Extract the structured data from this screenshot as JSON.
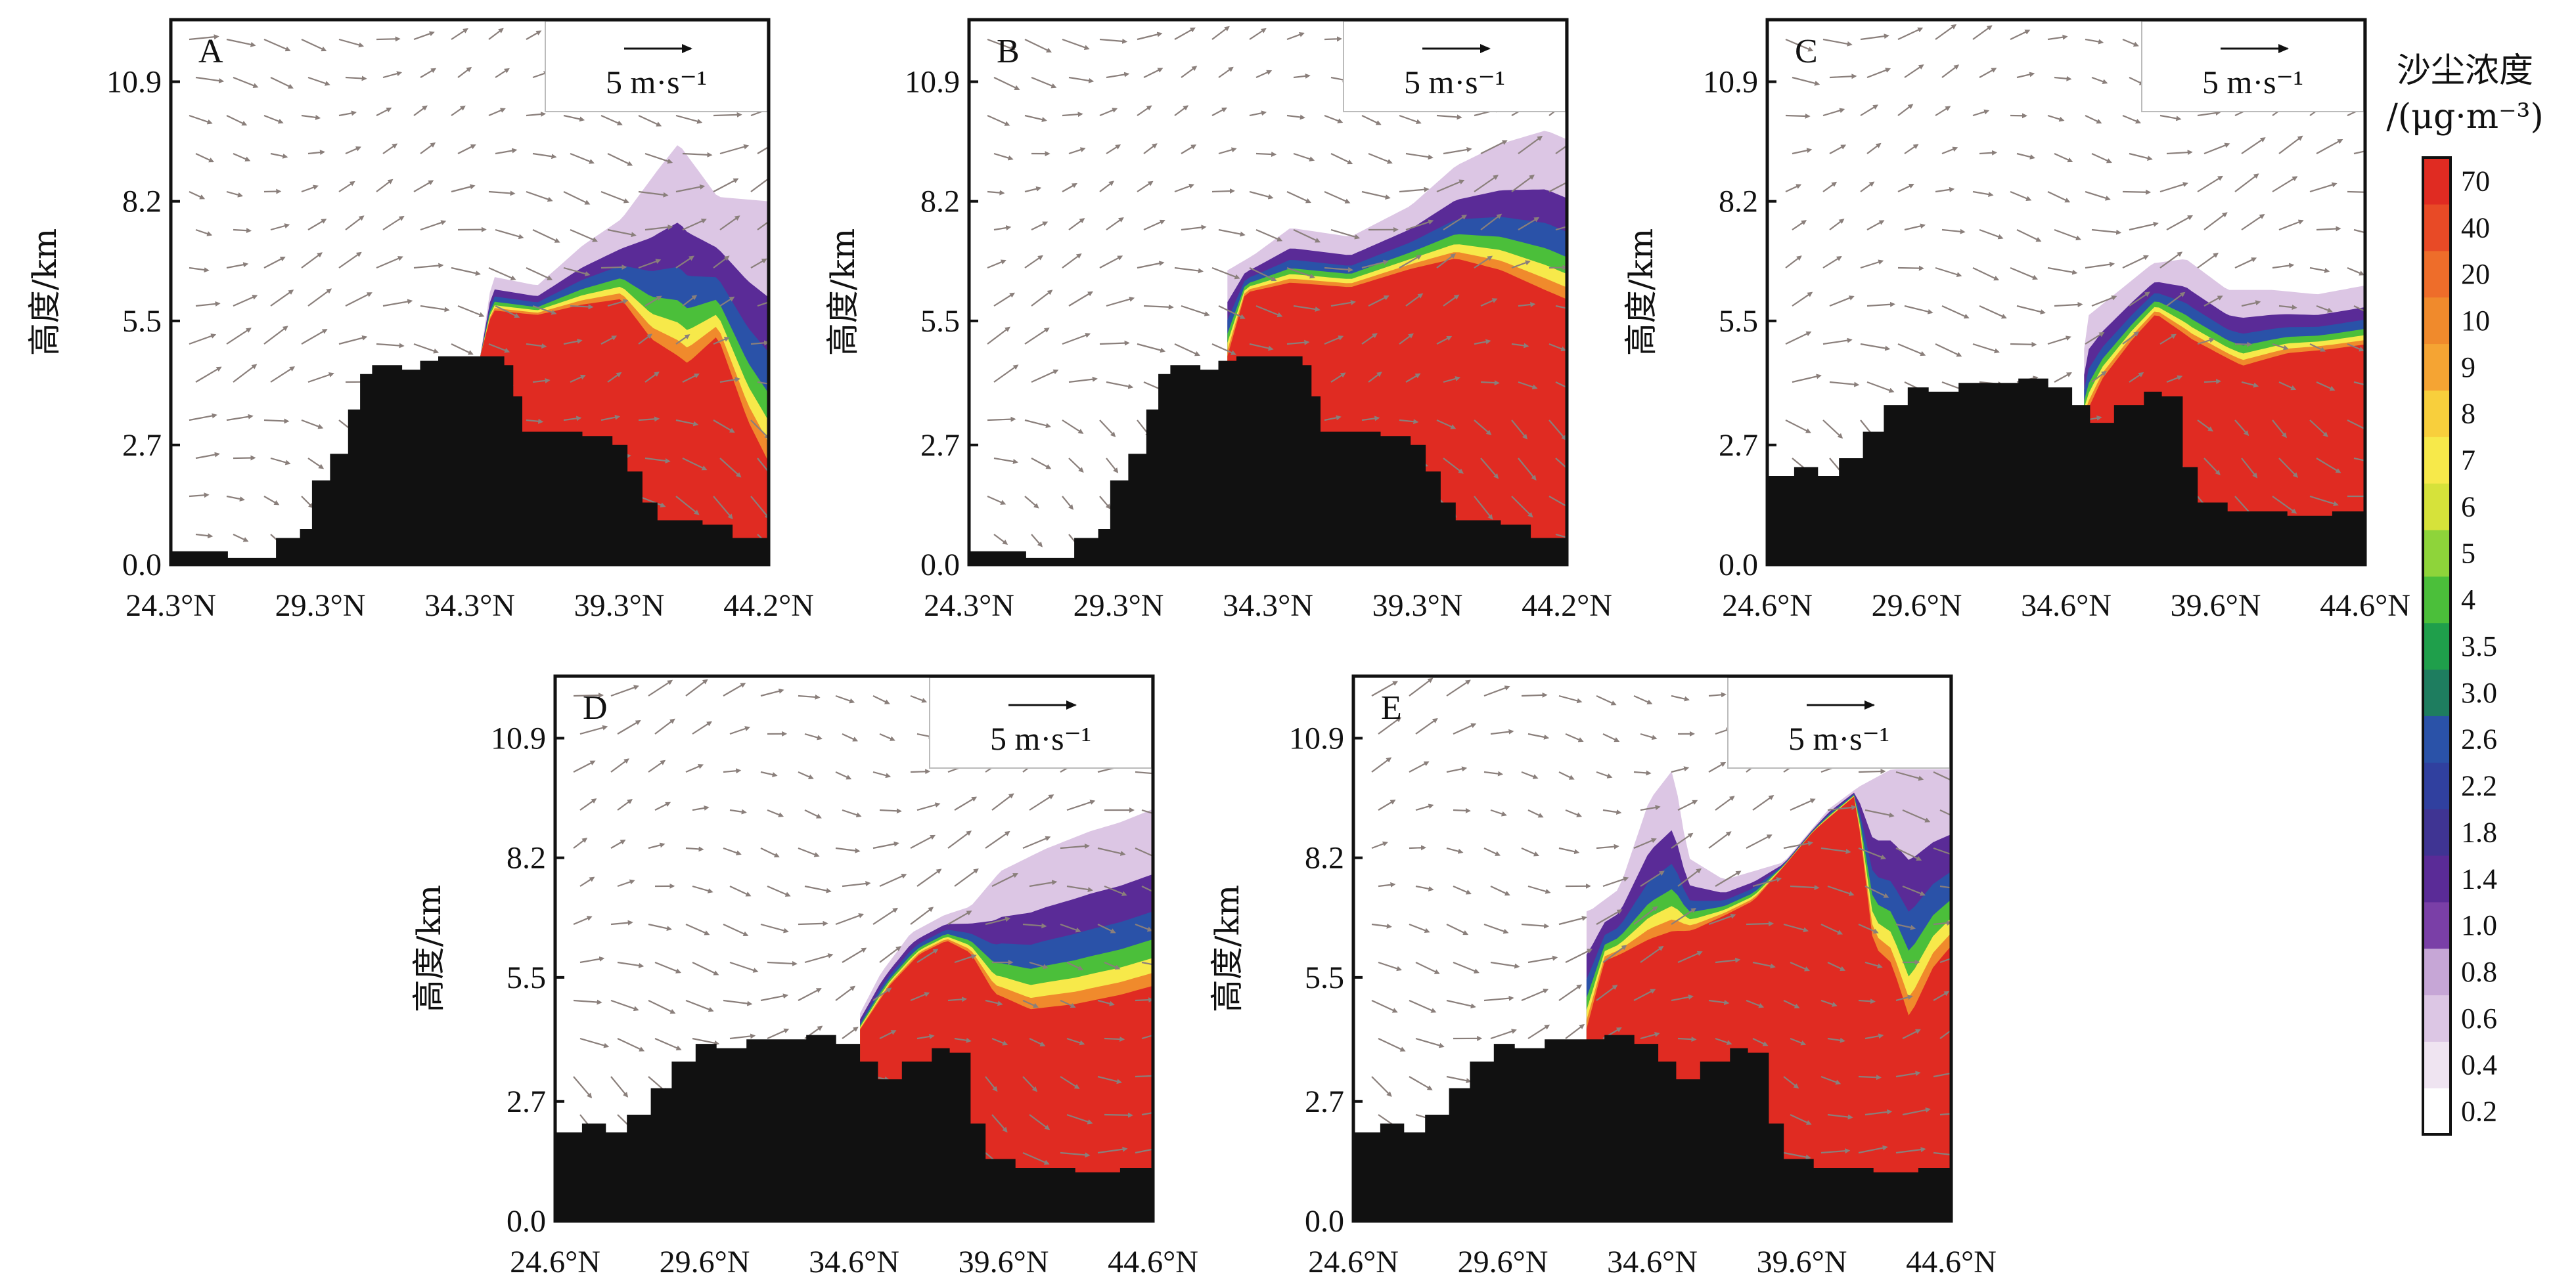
{
  "colorbar": {
    "title": "沙尘浓度",
    "unit": "/(μg·m⁻³)",
    "levels": [
      "0.2",
      "0.4",
      "0.6",
      "0.8",
      "1.0",
      "1.4",
      "1.8",
      "2.2",
      "2.6",
      "3.0",
      "3.5",
      "4",
      "5",
      "6",
      "7",
      "8",
      "9",
      "10",
      "20",
      "40",
      "70"
    ],
    "colors": [
      "#ffffff",
      "#efe4f1",
      "#dcc6e4",
      "#c6a6d6",
      "#7a3fa7",
      "#5a2b97",
      "#3f3493",
      "#30409f",
      "#2a52a8",
      "#1e7d5f",
      "#1f9f4b",
      "#4bbf3a",
      "#8ed43a",
      "#d6e23a",
      "#f7e94a",
      "#f8cf3c",
      "#f5a433",
      "#f08a2c",
      "#ee6d2a",
      "#e84a26",
      "#e02b22"
    ]
  },
  "reference_vector": {
    "label": "5 m·s⁻¹"
  },
  "y_axis_title": "高度/km",
  "chart_data": [
    {
      "type": "heatmap",
      "panel": "A",
      "x_ticks": [
        "24.3°N",
        "29.3°N",
        "34.3°N",
        "39.3°N",
        "44.2°N"
      ],
      "y_ticks": [
        "0.0",
        "2.7",
        "5.5",
        "8.2",
        "10.9"
      ],
      "xlim": [
        24.3,
        44.2
      ],
      "ylim": [
        0,
        12.3
      ],
      "terrain": [
        [
          24.3,
          0.3
        ],
        [
          26.0,
          0.3
        ],
        [
          26.2,
          0.15
        ],
        [
          27.5,
          0.15
        ],
        [
          27.8,
          0.6
        ],
        [
          28.6,
          0.8
        ],
        [
          29.0,
          1.9
        ],
        [
          29.6,
          2.5
        ],
        [
          30.2,
          3.5
        ],
        [
          30.6,
          4.3
        ],
        [
          31.0,
          4.5
        ],
        [
          32.0,
          4.4
        ],
        [
          32.6,
          4.6
        ],
        [
          33.2,
          4.7
        ],
        [
          34.8,
          4.7
        ],
        [
          35.4,
          4.5
        ],
        [
          35.7,
          3.8
        ],
        [
          36.0,
          3.0
        ],
        [
          38.0,
          2.9
        ],
        [
          39.0,
          2.7
        ],
        [
          39.5,
          2.1
        ],
        [
          40.0,
          1.4
        ],
        [
          40.5,
          1.0
        ],
        [
          42.0,
          0.9
        ],
        [
          43.0,
          0.6
        ],
        [
          44.2,
          0.7
        ]
      ],
      "plume_top": [
        [
          34.6,
          4.7
        ],
        [
          35.0,
          6.5
        ],
        [
          36.5,
          6.3
        ],
        [
          38.0,
          7.2
        ],
        [
          39.3,
          7.8
        ],
        [
          40.5,
          8.9
        ],
        [
          41.2,
          9.5
        ],
        [
          42.5,
          8.3
        ],
        [
          44.2,
          8.2
        ]
      ],
      "plume_layers": [
        [
          34.6,
          4.7
        ],
        [
          35.0,
          5.7
        ],
        [
          36.5,
          5.6
        ],
        [
          38.0,
          5.8
        ],
        [
          39.3,
          5.9
        ],
        [
          40.3,
          4.9
        ],
        [
          41.5,
          4.3
        ],
        [
          42.5,
          5.0
        ],
        [
          43.5,
          3.0
        ],
        [
          44.2,
          2.0
        ]
      ]
    },
    {
      "type": "heatmap",
      "panel": "B",
      "x_ticks": [
        "24.3°N",
        "29.3°N",
        "34.3°N",
        "39.3°N",
        "44.2°N"
      ],
      "y_ticks": [
        "0.0",
        "2.7",
        "5.5",
        "8.2",
        "10.9"
      ],
      "xlim": [
        24.3,
        44.2
      ],
      "ylim": [
        0,
        12.3
      ],
      "terrain": [
        [
          24.3,
          0.3
        ],
        [
          26.0,
          0.3
        ],
        [
          26.2,
          0.15
        ],
        [
          27.5,
          0.15
        ],
        [
          27.8,
          0.6
        ],
        [
          28.6,
          0.8
        ],
        [
          29.0,
          1.9
        ],
        [
          29.6,
          2.5
        ],
        [
          30.2,
          3.5
        ],
        [
          30.6,
          4.3
        ],
        [
          31.0,
          4.5
        ],
        [
          32.0,
          4.4
        ],
        [
          32.6,
          4.6
        ],
        [
          33.2,
          4.7
        ],
        [
          34.8,
          4.7
        ],
        [
          35.4,
          4.5
        ],
        [
          35.7,
          3.8
        ],
        [
          36.0,
          3.0
        ],
        [
          38.0,
          2.9
        ],
        [
          39.0,
          2.7
        ],
        [
          39.5,
          2.1
        ],
        [
          40.0,
          1.4
        ],
        [
          40.5,
          1.0
        ],
        [
          42.0,
          0.9
        ],
        [
          43.0,
          0.6
        ],
        [
          44.2,
          0.7
        ]
      ],
      "plume_top": [
        [
          32.3,
          4.6
        ],
        [
          32.8,
          6.6
        ],
        [
          33.8,
          7.0
        ],
        [
          35.0,
          7.6
        ],
        [
          37.0,
          7.4
        ],
        [
          39.0,
          8.1
        ],
        [
          40.5,
          9.0
        ],
        [
          42.0,
          9.5
        ],
        [
          43.5,
          9.8
        ],
        [
          44.2,
          9.6
        ]
      ],
      "plume_layers": [
        [
          32.9,
          4.6
        ],
        [
          33.5,
          6.1
        ],
        [
          35.0,
          6.3
        ],
        [
          37.0,
          6.2
        ],
        [
          39.0,
          6.6
        ],
        [
          40.5,
          6.8
        ],
        [
          42.0,
          6.5
        ],
        [
          43.5,
          6.0
        ],
        [
          44.2,
          5.8
        ]
      ]
    },
    {
      "type": "heatmap",
      "panel": "C",
      "x_ticks": [
        "24.6°N",
        "29.6°N",
        "34.6°N",
        "39.6°N",
        "44.6°N"
      ],
      "y_ticks": [
        "0.0",
        "2.7",
        "5.5",
        "8.2",
        "10.9"
      ],
      "xlim": [
        24.6,
        44.6
      ],
      "ylim": [
        0,
        12.3
      ],
      "terrain": [
        [
          24.6,
          2.0
        ],
        [
          25.5,
          2.2
        ],
        [
          26.3,
          2.0
        ],
        [
          27.0,
          2.4
        ],
        [
          27.8,
          3.0
        ],
        [
          28.5,
          3.6
        ],
        [
          29.3,
          4.0
        ],
        [
          30.0,
          3.9
        ],
        [
          31.0,
          4.1
        ],
        [
          32.0,
          4.1
        ],
        [
          33.0,
          4.2
        ],
        [
          34.0,
          4.0
        ],
        [
          34.8,
          3.6
        ],
        [
          35.4,
          3.2
        ],
        [
          36.2,
          3.6
        ],
        [
          37.2,
          3.9
        ],
        [
          37.8,
          3.8
        ],
        [
          38.5,
          2.2
        ],
        [
          39.0,
          1.4
        ],
        [
          40.0,
          1.2
        ],
        [
          42.0,
          1.1
        ],
        [
          43.5,
          1.2
        ],
        [
          44.6,
          1.5
        ]
      ],
      "plume_top": [
        [
          35.0,
          3.4
        ],
        [
          35.3,
          5.6
        ],
        [
          36.4,
          6.2
        ],
        [
          37.5,
          6.8
        ],
        [
          38.6,
          6.9
        ],
        [
          40.0,
          6.2
        ],
        [
          41.5,
          6.2
        ],
        [
          43.0,
          6.1
        ],
        [
          44.6,
          6.3
        ]
      ],
      "plume_layers": [
        [
          35.2,
          3.2
        ],
        [
          35.8,
          4.1
        ],
        [
          36.8,
          5.0
        ],
        [
          37.6,
          5.6
        ],
        [
          38.8,
          5.0
        ],
        [
          40.5,
          4.4
        ],
        [
          42.0,
          4.7
        ],
        [
          43.5,
          4.8
        ],
        [
          44.6,
          4.9
        ]
      ]
    },
    {
      "type": "heatmap",
      "panel": "D",
      "x_ticks": [
        "24.6°N",
        "29.6°N",
        "34.6°N",
        "39.6°N",
        "44.6°N"
      ],
      "y_ticks": [
        "0.0",
        "2.7",
        "5.5",
        "8.2",
        "10.9"
      ],
      "xlim": [
        24.6,
        44.6
      ],
      "ylim": [
        0,
        12.3
      ],
      "terrain": [
        [
          24.6,
          2.0
        ],
        [
          25.5,
          2.2
        ],
        [
          26.3,
          2.0
        ],
        [
          27.0,
          2.4
        ],
        [
          27.8,
          3.0
        ],
        [
          28.5,
          3.6
        ],
        [
          29.3,
          4.0
        ],
        [
          30.0,
          3.9
        ],
        [
          31.0,
          4.1
        ],
        [
          32.0,
          4.1
        ],
        [
          33.0,
          4.2
        ],
        [
          34.0,
          4.0
        ],
        [
          34.8,
          3.6
        ],
        [
          35.4,
          3.2
        ],
        [
          36.2,
          3.6
        ],
        [
          37.2,
          3.9
        ],
        [
          37.8,
          3.8
        ],
        [
          38.5,
          2.2
        ],
        [
          39.0,
          1.4
        ],
        [
          40.0,
          1.2
        ],
        [
          42.0,
          1.1
        ],
        [
          43.5,
          1.2
        ],
        [
          44.6,
          1.5
        ]
      ],
      "plume_top": [
        [
          34.5,
          4.3
        ],
        [
          35.5,
          5.6
        ],
        [
          36.5,
          6.5
        ],
        [
          37.6,
          6.9
        ],
        [
          38.5,
          7.1
        ],
        [
          39.5,
          7.9
        ],
        [
          41.0,
          8.4
        ],
        [
          42.5,
          8.8
        ],
        [
          43.5,
          9.0
        ],
        [
          44.6,
          9.3
        ]
      ],
      "plume_layers": [
        [
          34.8,
          4.3
        ],
        [
          35.8,
          5.3
        ],
        [
          36.8,
          6.0
        ],
        [
          37.7,
          6.3
        ],
        [
          38.5,
          6.0
        ],
        [
          39.3,
          5.0
        ],
        [
          40.5,
          4.6
        ],
        [
          42.0,
          4.7
        ],
        [
          43.5,
          4.9
        ],
        [
          44.6,
          5.1
        ]
      ]
    },
    {
      "type": "heatmap",
      "panel": "E",
      "x_ticks": [
        "24.6°N",
        "29.6°N",
        "34.6°N",
        "39.6°N",
        "44.6°N"
      ],
      "y_ticks": [
        "0.0",
        "2.7",
        "5.5",
        "8.2",
        "10.9"
      ],
      "xlim": [
        24.6,
        44.6
      ],
      "ylim": [
        0,
        12.3
      ],
      "terrain": [
        [
          24.6,
          2.0
        ],
        [
          25.5,
          2.2
        ],
        [
          26.3,
          2.0
        ],
        [
          27.0,
          2.4
        ],
        [
          27.8,
          3.0
        ],
        [
          28.5,
          3.6
        ],
        [
          29.3,
          4.0
        ],
        [
          30.0,
          3.9
        ],
        [
          31.0,
          4.1
        ],
        [
          32.0,
          4.1
        ],
        [
          33.0,
          4.2
        ],
        [
          34.0,
          4.0
        ],
        [
          34.8,
          3.6
        ],
        [
          35.4,
          3.2
        ],
        [
          36.2,
          3.6
        ],
        [
          37.2,
          3.9
        ],
        [
          37.8,
          3.8
        ],
        [
          38.5,
          2.2
        ],
        [
          39.0,
          1.4
        ],
        [
          40.0,
          1.2
        ],
        [
          42.0,
          1.1
        ],
        [
          43.5,
          1.2
        ],
        [
          44.6,
          1.5
        ]
      ],
      "plume_top": [
        [
          31.4,
          4.1
        ],
        [
          31.6,
          6.9
        ],
        [
          32.5,
          7.0
        ],
        [
          33.5,
          7.5
        ],
        [
          34.5,
          9.5
        ],
        [
          35.3,
          10.2
        ],
        [
          35.8,
          8.2
        ],
        [
          37.0,
          7.7
        ],
        [
          39.0,
          8.1
        ],
        [
          40.5,
          9.3
        ],
        [
          41.5,
          9.8
        ],
        [
          42.6,
          10.2
        ],
        [
          44.6,
          10.2
        ]
      ],
      "plume_layers": [
        [
          32.4,
          4.2
        ],
        [
          33.0,
          5.8
        ],
        [
          34.5,
          6.2
        ],
        [
          36.0,
          6.5
        ],
        [
          38.0,
          7.2
        ],
        [
          40.0,
          8.8
        ],
        [
          41.4,
          9.6
        ],
        [
          42.0,
          6.0
        ],
        [
          42.6,
          5.6
        ],
        [
          43.2,
          4.3
        ],
        [
          44.0,
          5.5
        ],
        [
          44.6,
          6.0
        ]
      ]
    }
  ]
}
